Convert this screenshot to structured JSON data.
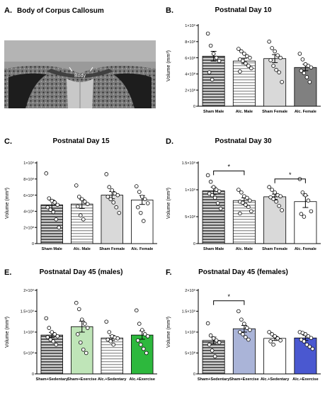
{
  "figure": {
    "panel_a": {
      "letter": "A.",
      "title": "Body of Corpus Callosum",
      "label": "Body"
    }
  },
  "chart_data": [
    {
      "id": "B",
      "type": "bar",
      "letter": "B.",
      "title": "Postnatal Day 10",
      "ylabel": "Volume (mm³)",
      "ylim": [
        0,
        1000000000
      ],
      "yticks": [
        0,
        200000000,
        400000000,
        600000000,
        800000000,
        1000000000
      ],
      "ytick_labels": [
        "0",
        "2×10⁸",
        "4×10⁸",
        "6×10⁸",
        "8×10⁸",
        "1×10⁹"
      ],
      "categories": [
        "Sham Male",
        "Alc. Male",
        "Sham Female",
        "Alc. Female"
      ],
      "values": [
        620000000,
        560000000,
        590000000,
        480000000
      ],
      "errors": [
        60000000,
        35000000,
        50000000,
        40000000
      ],
      "fills": [
        "stripes-dark",
        "stripes-light",
        "#d9d9d9",
        "#808080"
      ],
      "points": [
        [
          900000000,
          750000000,
          650000000,
          600000000,
          560000000,
          420000000,
          330000000
        ],
        [
          710000000,
          680000000,
          650000000,
          620000000,
          600000000,
          580000000,
          560000000,
          530000000,
          500000000,
          470000000,
          430000000
        ],
        [
          800000000,
          720000000,
          680000000,
          630000000,
          600000000,
          570000000,
          500000000,
          450000000,
          420000000,
          300000000
        ],
        [
          650000000,
          580000000,
          520000000,
          500000000,
          480000000,
          440000000,
          410000000,
          360000000,
          300000000
        ]
      ],
      "significance": []
    },
    {
      "id": "C",
      "type": "bar",
      "letter": "C.",
      "title": "Postnatal Day 15",
      "ylabel": "Volume (mm³)",
      "ylim": [
        0,
        1000000000
      ],
      "yticks": [
        0,
        200000000,
        400000000,
        600000000,
        800000000,
        1000000000
      ],
      "ytick_labels": [
        "0",
        "2×10⁸",
        "4×10⁸",
        "6×10⁸",
        "8×10⁸",
        "1×10⁹"
      ],
      "categories": [
        "Sham Male",
        "Alc. Male",
        "Sham Female",
        "Alc. Female"
      ],
      "values": [
        480000000,
        490000000,
        600000000,
        540000000
      ],
      "errors": [
        60000000,
        55000000,
        45000000,
        55000000
      ],
      "fills": [
        "stripes-dark",
        "stripes-light",
        "#d9d9d9",
        "#ffffff"
      ],
      "points": [
        [
          870000000,
          560000000,
          530000000,
          510000000,
          480000000,
          450000000,
          420000000,
          390000000,
          300000000,
          200000000
        ],
        [
          720000000,
          580000000,
          550000000,
          520000000,
          490000000,
          460000000,
          350000000,
          300000000
        ],
        [
          860000000,
          700000000,
          660000000,
          620000000,
          600000000,
          580000000,
          550000000,
          510000000,
          450000000,
          380000000
        ],
        [
          710000000,
          640000000,
          580000000,
          550000000,
          500000000,
          450000000,
          380000000,
          280000000
        ]
      ],
      "significance": []
    },
    {
      "id": "D",
      "type": "bar",
      "letter": "D.",
      "title": "Postnatal Day 30",
      "ylabel": "Volume (mm³)",
      "ylim": [
        0,
        1500000000
      ],
      "yticks": [
        0,
        500000000,
        1000000000,
        1500000000
      ],
      "ytick_labels": [
        "0",
        "5×10⁸",
        "1×10⁹",
        "1.5×10⁹"
      ],
      "categories": [
        "Sham Male",
        "Alc. Male",
        "Sham Female",
        "Alc. Female"
      ],
      "values": [
        980000000,
        800000000,
        870000000,
        780000000
      ],
      "errors": [
        70000000,
        50000000,
        50000000,
        110000000
      ],
      "fills": [
        "stripes-dark",
        "stripes-light",
        "#d9d9d9",
        "#ffffff"
      ],
      "points": [
        [
          1270000000,
          1150000000,
          1050000000,
          1000000000,
          970000000,
          930000000,
          900000000,
          850000000,
          750000000,
          650000000
        ],
        [
          1000000000,
          950000000,
          880000000,
          850000000,
          800000000,
          780000000,
          760000000,
          720000000,
          680000000,
          600000000,
          560000000
        ],
        [
          1050000000,
          1000000000,
          950000000,
          900000000,
          880000000,
          860000000,
          830000000,
          780000000,
          700000000,
          620000000
        ],
        [
          1200000000,
          950000000,
          900000000,
          800000000,
          600000000,
          550000000,
          500000000
        ]
      ],
      "significance": [
        {
          "from": 0,
          "to": 1,
          "level": 1350000000,
          "label": "*"
        },
        {
          "from": 2,
          "to": 3,
          "level": 1200000000,
          "label": "*"
        }
      ]
    },
    {
      "id": "E",
      "type": "bar",
      "letter": "E.",
      "title": "Postnatal Day 45 (males)",
      "ylabel": "Volume (mm³)",
      "ylim": [
        0,
        2000000000
      ],
      "yticks": [
        0,
        500000000,
        1000000000,
        1500000000,
        2000000000
      ],
      "ytick_labels": [
        "0",
        "5×10⁸",
        "1×10⁹",
        "1.5×10⁹",
        "2×10⁹"
      ],
      "categories": [
        "Sham+Sedentary",
        "Sham+Exercise",
        "Alc.+Sedentary",
        "Alc.+Exercise"
      ],
      "values": [
        930000000,
        1130000000,
        860000000,
        930000000
      ],
      "errors": [
        60000000,
        130000000,
        60000000,
        100000000
      ],
      "fills": [
        "stripes-dark",
        "#bfe5b8",
        "stripes-light",
        "#2db83d"
      ],
      "points": [
        [
          1330000000,
          1100000000,
          1000000000,
          950000000,
          900000000,
          880000000,
          820000000,
          780000000,
          700000000
        ],
        [
          1700000000,
          1550000000,
          1300000000,
          1200000000,
          1100000000,
          950000000,
          750000000,
          580000000,
          500000000
        ],
        [
          1250000000,
          1000000000,
          900000000,
          870000000,
          850000000,
          820000000,
          780000000,
          700000000
        ],
        [
          1520000000,
          1200000000,
          1050000000,
          950000000,
          900000000,
          800000000,
          700000000,
          600000000,
          500000000
        ]
      ],
      "significance": []
    },
    {
      "id": "F",
      "type": "bar",
      "letter": "F.",
      "title": "Postnatal Day 45 (females)",
      "ylabel": "Volume (mm³)",
      "ylim": [
        0,
        2000000000
      ],
      "yticks": [
        0,
        500000000,
        1000000000,
        1500000000,
        2000000000
      ],
      "ytick_labels": [
        "0",
        "5×10⁸",
        "1×10⁹",
        "1.5×10⁹",
        "2×10⁹"
      ],
      "categories": [
        "Sham+Sedentary",
        "Sham+Exercise",
        "Alc.+Sedentary",
        "Alc.+Exercise"
      ],
      "values": [
        800000000,
        1080000000,
        850000000,
        860000000
      ],
      "errors": [
        80000000,
        80000000,
        50000000,
        60000000
      ],
      "fills": [
        "stripes-dark",
        "#aab4d8",
        "#ffffff",
        "#4a58d0"
      ],
      "points": [
        [
          1210000000,
          920000000,
          850000000,
          800000000,
          750000000,
          700000000,
          560000000,
          420000000
        ],
        [
          1500000000,
          1300000000,
          1200000000,
          1100000000,
          1050000000,
          1000000000,
          950000000,
          880000000,
          820000000
        ],
        [
          1000000000,
          950000000,
          900000000,
          850000000,
          800000000,
          780000000,
          700000000
        ],
        [
          1000000000,
          980000000,
          950000000,
          900000000,
          860000000,
          820000000,
          780000000,
          700000000,
          650000000,
          600000000
        ]
      ],
      "significance": [
        {
          "from": 0,
          "to": 1,
          "level": 1750000000,
          "label": "*"
        }
      ]
    }
  ]
}
